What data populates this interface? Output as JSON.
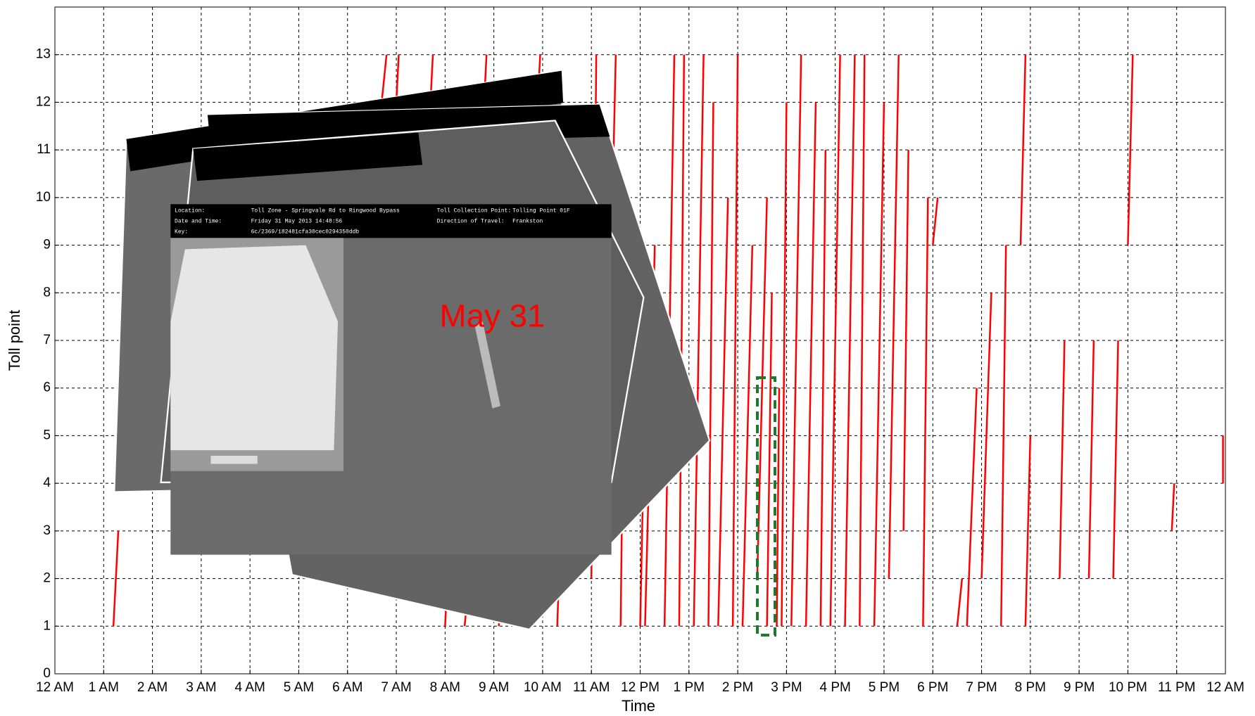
{
  "chart_data": {
    "type": "line",
    "x_label": "Time",
    "y_label": "Toll point",
    "color": "#ff0000",
    "grid": true,
    "xlim": [
      0,
      24
    ],
    "ylim": [
      0,
      14
    ],
    "xticks": [
      {
        "value": 0,
        "label": "12 AM"
      },
      {
        "value": 1,
        "label": "1 AM"
      },
      {
        "value": 2,
        "label": "2 AM"
      },
      {
        "value": 3,
        "label": "3 AM"
      },
      {
        "value": 4,
        "label": "4 AM"
      },
      {
        "value": 5,
        "label": "5 AM"
      },
      {
        "value": 6,
        "label": "6 AM"
      },
      {
        "value": 7,
        "label": "7 AM"
      },
      {
        "value": 8,
        "label": "8 AM"
      },
      {
        "value": 9,
        "label": "9 AM"
      },
      {
        "value": 10,
        "label": "10 AM"
      },
      {
        "value": 11,
        "label": "11 AM"
      },
      {
        "value": 12,
        "label": "12 PM"
      },
      {
        "value": 13,
        "label": "1 PM"
      },
      {
        "value": 14,
        "label": "2 PM"
      },
      {
        "value": 15,
        "label": "3 PM"
      },
      {
        "value": 16,
        "label": "4 PM"
      },
      {
        "value": 17,
        "label": "5 PM"
      },
      {
        "value": 18,
        "label": "6 PM"
      },
      {
        "value": 19,
        "label": "7 PM"
      },
      {
        "value": 20,
        "label": "8 PM"
      },
      {
        "value": 21,
        "label": "9 PM"
      },
      {
        "value": 22,
        "label": "10 PM"
      },
      {
        "value": 23,
        "label": "11 PM"
      },
      {
        "value": 24,
        "label": "12 AM"
      }
    ],
    "yticks": [
      0,
      1,
      2,
      3,
      4,
      5,
      6,
      7,
      8,
      9,
      10,
      11,
      12,
      13
    ],
    "series": [
      {
        "x": [
          1.2,
          1.3
        ],
        "values": [
          1,
          3
        ]
      },
      {
        "x": [
          6.7,
          6.8
        ],
        "values": [
          12,
          13
        ]
      },
      {
        "x": [
          7.0,
          7.05
        ],
        "values": [
          12,
          13
        ]
      },
      {
        "x": [
          7.7,
          7.75
        ],
        "values": [
          12,
          13
        ]
      },
      {
        "x": [
          8.8,
          8.85
        ],
        "values": [
          12,
          13
        ]
      },
      {
        "x": [
          9.9,
          9.95
        ],
        "values": [
          12,
          13
        ]
      },
      {
        "x": [
          8.0,
          8.05
        ],
        "values": [
          1,
          2
        ]
      },
      {
        "x": [
          8.4,
          8.5
        ],
        "values": [
          1,
          2
        ]
      },
      {
        "x": [
          9.1,
          9.2
        ],
        "values": [
          1,
          2
        ]
      },
      {
        "x": [
          10.3,
          10.4
        ],
        "values": [
          1,
          4
        ]
      },
      {
        "x": [
          10.5,
          10.6
        ],
        "values": [
          2,
          5
        ]
      },
      {
        "x": [
          11.0,
          11.1
        ],
        "values": [
          2,
          13
        ]
      },
      {
        "x": [
          11.3,
          11.5
        ],
        "values": [
          4,
          13
        ]
      },
      {
        "x": [
          11.6,
          11.7
        ],
        "values": [
          1,
          10
        ]
      },
      {
        "x": [
          12.0,
          12.1
        ],
        "values": [
          1,
          6
        ]
      },
      {
        "x": [
          12.1,
          12.3
        ],
        "values": [
          1,
          9
        ]
      },
      {
        "x": [
          12.5,
          12.7
        ],
        "values": [
          1,
          13
        ]
      },
      {
        "x": [
          12.8,
          12.9
        ],
        "values": [
          1,
          13
        ]
      },
      {
        "x": [
          13.1,
          13.3
        ],
        "values": [
          1,
          13
        ]
      },
      {
        "x": [
          13.4,
          13.5
        ],
        "values": [
          1,
          12
        ]
      },
      {
        "x": [
          13.6,
          13.8
        ],
        "values": [
          1,
          10
        ]
      },
      {
        "x": [
          13.9,
          14.0
        ],
        "values": [
          1,
          13
        ]
      },
      {
        "x": [
          14.1,
          14.3
        ],
        "values": [
          1,
          9
        ]
      },
      {
        "x": [
          14.4,
          14.6
        ],
        "values": [
          2,
          10
        ]
      },
      {
        "x": [
          14.6,
          14.7
        ],
        "values": [
          1,
          8
        ]
      },
      {
        "x": [
          14.8,
          14.85
        ],
        "values": [
          1,
          6
        ]
      },
      {
        "x": [
          14.9,
          15.0
        ],
        "values": [
          1,
          12
        ]
      },
      {
        "x": [
          15.1,
          15.3
        ],
        "values": [
          1,
          13
        ]
      },
      {
        "x": [
          15.4,
          15.6
        ],
        "values": [
          1,
          12
        ]
      },
      {
        "x": [
          15.7,
          15.8
        ],
        "values": [
          1,
          11
        ]
      },
      {
        "x": [
          15.9,
          16.1
        ],
        "values": [
          1,
          13
        ]
      },
      {
        "x": [
          16.2,
          16.4
        ],
        "values": [
          1,
          13
        ]
      },
      {
        "x": [
          16.5,
          16.6
        ],
        "values": [
          1,
          13
        ]
      },
      {
        "x": [
          16.8,
          17.0
        ],
        "values": [
          1,
          12
        ]
      },
      {
        "x": [
          17.1,
          17.3
        ],
        "values": [
          2,
          13
        ]
      },
      {
        "x": [
          17.4,
          17.5
        ],
        "values": [
          3,
          11
        ]
      },
      {
        "x": [
          17.8,
          17.9
        ],
        "values": [
          1,
          10
        ]
      },
      {
        "x": [
          18.0,
          18.1
        ],
        "values": [
          9,
          10
        ]
      },
      {
        "x": [
          18.5,
          18.6
        ],
        "values": [
          1,
          2
        ]
      },
      {
        "x": [
          18.7,
          18.9
        ],
        "values": [
          1,
          6
        ]
      },
      {
        "x": [
          19.0,
          19.2
        ],
        "values": [
          2,
          8
        ]
      },
      {
        "x": [
          19.4,
          19.5
        ],
        "values": [
          1,
          9
        ]
      },
      {
        "x": [
          19.8,
          19.9
        ],
        "values": [
          9,
          13
        ]
      },
      {
        "x": [
          19.9,
          20.0
        ],
        "values": [
          1,
          5
        ]
      },
      {
        "x": [
          20.6,
          20.7
        ],
        "values": [
          2,
          7
        ]
      },
      {
        "x": [
          21.2,
          21.3
        ],
        "values": [
          2,
          7
        ]
      },
      {
        "x": [
          21.7,
          21.8
        ],
        "values": [
          2,
          7
        ]
      },
      {
        "x": [
          22.0,
          22.1
        ],
        "values": [
          9,
          13
        ]
      },
      {
        "x": [
          22.9,
          22.95
        ],
        "values": [
          3,
          4
        ]
      },
      {
        "x": [
          23.95,
          23.95
        ],
        "values": [
          4,
          5
        ]
      }
    ],
    "annotation": "May 31",
    "photo": {
      "location_label": "Location:",
      "location": "Toll Zone - Springvale Rd to Ringwood Bypass",
      "point_label": "Toll Collection Point:",
      "point": "Tolling Point 01F",
      "date_label": "Date and Time:",
      "date": "Friday 31 May 2013 14:48:56",
      "direction_label": "Direction of Travel:",
      "direction": "Frankston",
      "key_label": "Key:",
      "key": "6c/2369/182481cfa30cec0294350ddb"
    }
  }
}
